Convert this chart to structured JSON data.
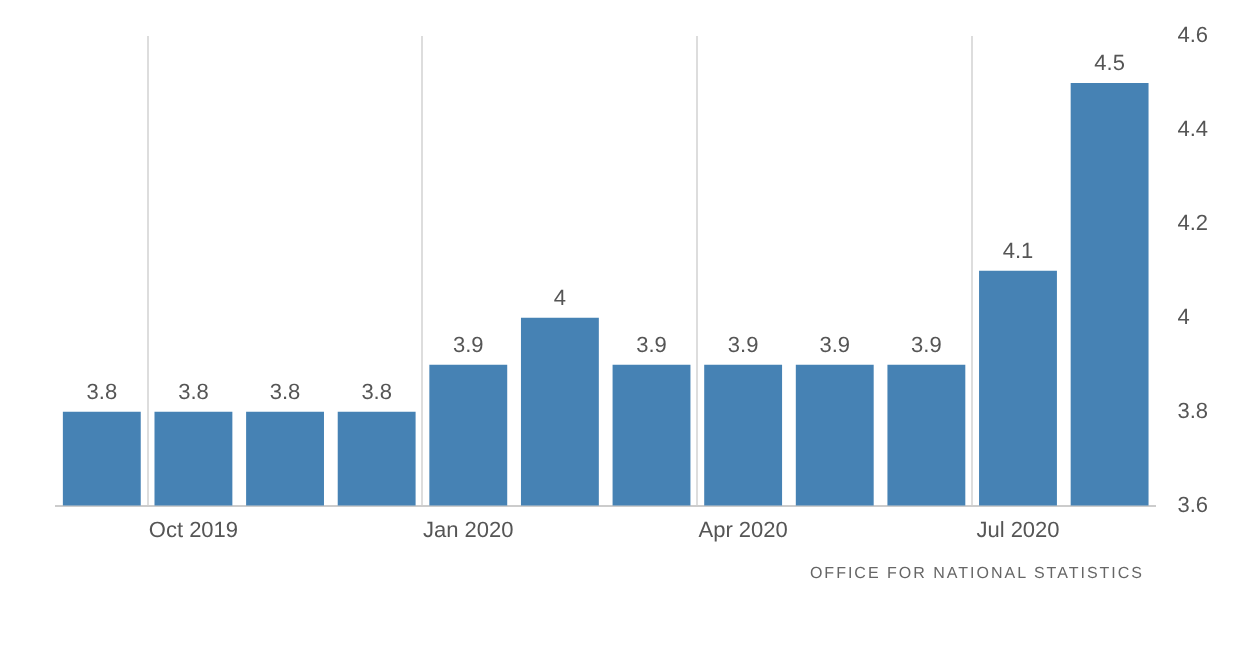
{
  "chart_data": {
    "type": "bar",
    "categories": [
      null,
      "Oct 2019",
      null,
      null,
      "Jan 2020",
      null,
      null,
      "Apr 2020",
      null,
      null,
      "Jul 2020",
      null
    ],
    "values": [
      3.8,
      3.8,
      3.8,
      3.8,
      3.9,
      4,
      3.9,
      3.9,
      3.9,
      3.9,
      4.1,
      4.5
    ],
    "color": "#4682b4",
    "ylim": [
      3.6,
      4.6
    ],
    "yticks": [
      3.6,
      3.8,
      4,
      4.2,
      4.4,
      4.6
    ],
    "grid": "x",
    "data_labels": true,
    "annotations": [
      "OFFICE FOR NATIONAL STATISTICS"
    ]
  }
}
